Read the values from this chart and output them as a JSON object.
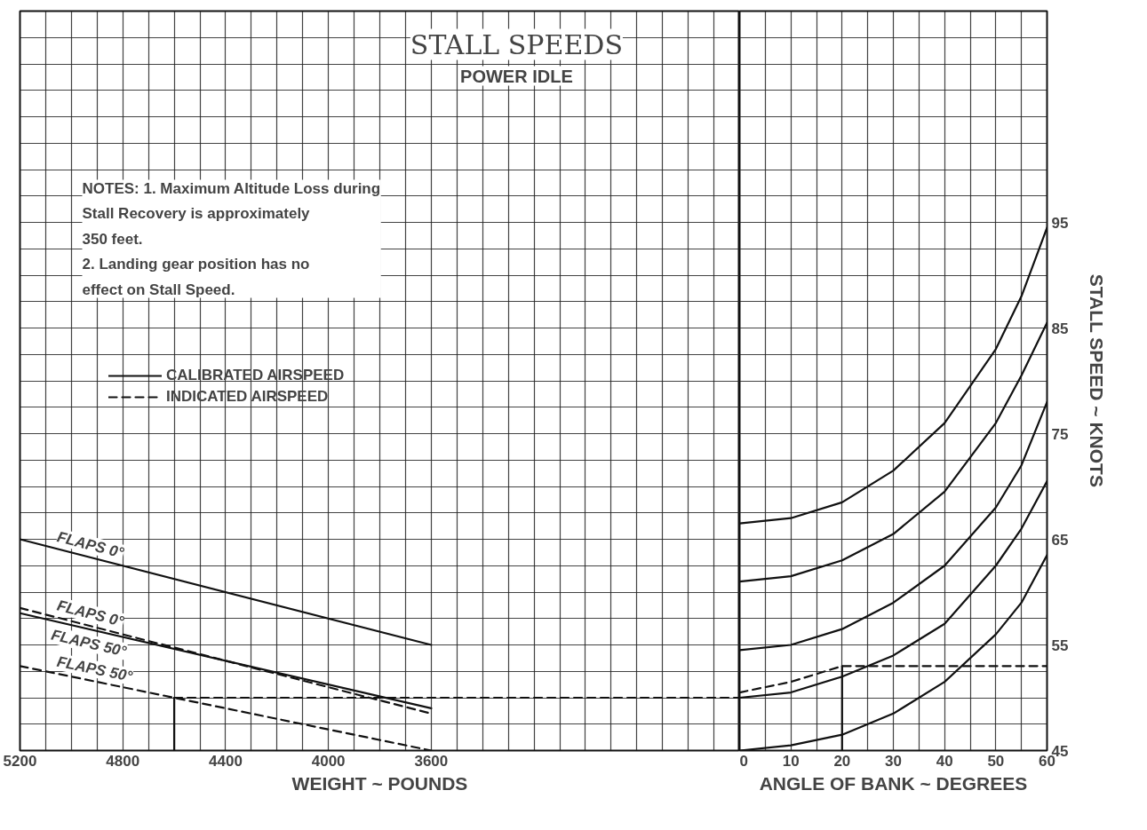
{
  "chart_data": [
    {
      "type": "line",
      "title": "STALL SPEEDS",
      "subtitle": "POWER IDLE",
      "xlabel": "WEIGHT ~ POUNDS",
      "xlim": [
        5200,
        2400
      ],
      "ylim": [
        45,
        115
      ],
      "xticks": [
        5200,
        {
          "value": 5100,
          "label": null
        },
        {
          "value": 5000,
          "label": null
        },
        {
          "value": 4900,
          "label": null
        },
        4800,
        {
          "value": 4700,
          "label": null
        },
        {
          "value": 4600,
          "label": null
        },
        {
          "value": 4500,
          "label": null
        },
        4400,
        {
          "value": 4300,
          "label": null
        },
        {
          "value": 4200,
          "label": null
        },
        {
          "value": 4100,
          "label": null
        },
        4000,
        {
          "value": 3900,
          "label": null
        },
        {
          "value": 3800,
          "label": null
        },
        {
          "value": 3700,
          "label": null
        },
        3600,
        {
          "value": 3500,
          "label": null
        },
        {
          "value": 3400,
          "label": null
        },
        {
          "value": 3300,
          "label": null
        },
        {
          "value": 3200,
          "label": null
        },
        {
          "value": 3100,
          "label": null
        },
        {
          "value": 3000,
          "label": null
        },
        {
          "value": 2900,
          "label": null
        },
        {
          "value": 2800,
          "label": null
        },
        {
          "value": 2700,
          "label": null
        },
        {
          "value": 2600,
          "label": null
        },
        {
          "value": 2500,
          "label": null
        },
        {
          "value": 2400,
          "label": null
        }
      ],
      "yticks": [
        45,
        {
          "value": 47.5,
          "label": null
        },
        {
          "value": 50,
          "label": null
        },
        {
          "value": 52.5,
          "label": null
        },
        55,
        {
          "value": 57.5,
          "label": null
        },
        {
          "value": 60,
          "label": null
        },
        {
          "value": 62.5,
          "label": null
        },
        65,
        {
          "value": 67.5,
          "label": null
        },
        {
          "value": 70,
          "label": null
        },
        {
          "value": 72.5,
          "label": null
        },
        75,
        {
          "value": 77.5,
          "label": null
        },
        {
          "value": 80,
          "label": null
        },
        {
          "value": 82.5,
          "label": null
        },
        85,
        {
          "value": 87.5,
          "label": null
        },
        {
          "value": 90,
          "label": null
        },
        {
          "value": 92.5,
          "label": null
        },
        95,
        {
          "value": 97.5,
          "label": null
        },
        {
          "value": 100,
          "label": null
        },
        {
          "value": 102.5,
          "label": null
        },
        {
          "value": 105,
          "label": null
        },
        {
          "value": 107.5,
          "label": null
        },
        {
          "value": 110,
          "label": null
        },
        {
          "value": 112.5,
          "label": null
        },
        {
          "value": 115,
          "label": null
        }
      ],
      "grid": true,
      "tick_labels": "x",
      "annotations": [
        "NOTES: 1. Maximum Altitude Loss during\n            Stall Recovery is approximately\n            350 feet.\n        2. Landing gear position has no\n            effect on Stall Speed.",
        "CALIBRATED AIRSPEED",
        "INDICATED AIRSPEED"
      ],
      "series": [
        {
          "name": "FLAPS 0°",
          "color": "#111111",
          "line_style": "solid",
          "x": [
            5200,
            3600
          ],
          "values": [
            65,
            55
          ]
        },
        {
          "name": "FLAPS 0°",
          "color": "#111111",
          "line_style": "dashed",
          "x": [
            5200,
            3600
          ],
          "values": [
            58.5,
            48.5
          ]
        },
        {
          "name": "FLAPS 50°",
          "color": "#111111",
          "line_style": "solid",
          "x": [
            5200,
            3600
          ],
          "values": [
            58,
            49
          ]
        },
        {
          "name": "FLAPS 50°",
          "color": "#111111",
          "line_style": "dashed",
          "x": [
            5200,
            3600
          ],
          "values": [
            53,
            45
          ]
        },
        {
          "color": "#111111",
          "line_style": "solid",
          "x": [
            4600,
            4600
          ],
          "values": [
            45,
            50
          ]
        },
        {
          "color": "#111111",
          "line_style": "dashed",
          "x": [
            4600,
            2400
          ],
          "values": [
            50,
            50
          ]
        }
      ]
    },
    {
      "type": "line",
      "xlabel": "ANGLE OF BANK ~ DEGREES",
      "ylabel": "STALL SPEED ~ KNOTS",
      "xlim": [
        0,
        60
      ],
      "ylim": [
        45,
        115
      ],
      "xticks": [
        0,
        {
          "value": 5,
          "label": null
        },
        10,
        {
          "value": 15,
          "label": null
        },
        20,
        {
          "value": 25,
          "label": null
        },
        30,
        {
          "value": 35,
          "label": null
        },
        40,
        {
          "value": 45,
          "label": null
        },
        50,
        {
          "value": 55,
          "label": null
        },
        60
      ],
      "yticks": [
        45,
        {
          "value": 47.5,
          "label": null
        },
        {
          "value": 50,
          "label": null
        },
        {
          "value": 52.5,
          "label": null
        },
        55,
        {
          "value": 57.5,
          "label": null
        },
        {
          "value": 60,
          "label": null
        },
        {
          "value": 62.5,
          "label": null
        },
        65,
        {
          "value": 67.5,
          "label": null
        },
        {
          "value": 70,
          "label": null
        },
        {
          "value": 72.5,
          "label": null
        },
        75,
        {
          "value": 77.5,
          "label": null
        },
        {
          "value": 80,
          "label": null
        },
        {
          "value": 82.5,
          "label": null
        },
        85,
        {
          "value": 87.5,
          "label": null
        },
        {
          "value": 90,
          "label": null
        },
        {
          "value": 92.5,
          "label": null
        },
        95,
        {
          "value": 97.5,
          "label": null
        },
        {
          "value": 100,
          "label": null
        },
        {
          "value": 102.5,
          "label": null
        },
        {
          "value": 105,
          "label": null
        },
        {
          "value": 107.5,
          "label": null
        },
        {
          "value": 110,
          "label": null
        },
        {
          "value": 112.5,
          "label": null
        },
        {
          "value": 115,
          "label": null
        }
      ],
      "grid": true,
      "series": [
        {
          "color": "#111111",
          "line_style": "solid",
          "x": [
            0,
            10,
            20,
            30,
            40,
            50,
            55,
            60
          ],
          "values": [
            66.5,
            67,
            68.5,
            71.5,
            76,
            83,
            88,
            94.5
          ]
        },
        {
          "color": "#111111",
          "line_style": "solid",
          "x": [
            0,
            10,
            20,
            30,
            40,
            50,
            55,
            60
          ],
          "values": [
            61,
            61.5,
            63,
            65.5,
            69.5,
            76,
            80.5,
            85.5
          ]
        },
        {
          "color": "#111111",
          "line_style": "solid",
          "x": [
            0,
            10,
            20,
            30,
            40,
            50,
            55,
            60
          ],
          "values": [
            54.5,
            55,
            56.5,
            59,
            62.5,
            68,
            72,
            78
          ]
        },
        {
          "color": "#111111",
          "line_style": "solid",
          "x": [
            0,
            10,
            20,
            30,
            40,
            50,
            55,
            60
          ],
          "values": [
            50,
            50.5,
            52,
            54,
            57,
            62.5,
            66,
            70.5
          ]
        },
        {
          "color": "#111111",
          "line_style": "solid",
          "x": [
            0,
            10,
            20,
            30,
            40,
            50,
            55,
            60
          ],
          "values": [
            45,
            45.5,
            46.5,
            48.5,
            51.5,
            56,
            59,
            63.5
          ]
        },
        {
          "color": "#111111",
          "line_style": "dashed",
          "x": [
            0,
            10,
            20,
            30,
            40,
            50,
            60
          ],
          "values": [
            50.5,
            51.5,
            53,
            53,
            53,
            53,
            53
          ]
        },
        {
          "color": "#111111",
          "line_style": "solid",
          "x": [
            20,
            20
          ],
          "values": [
            45,
            53
          ]
        }
      ]
    }
  ]
}
